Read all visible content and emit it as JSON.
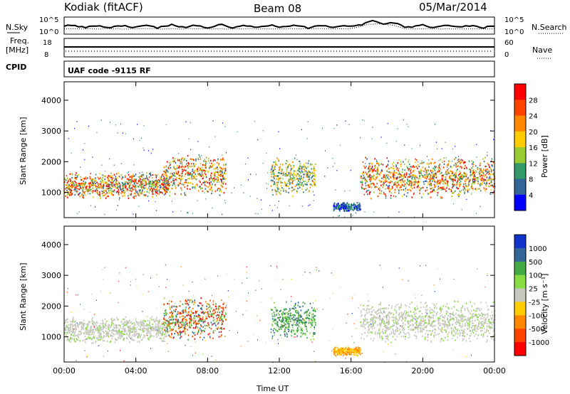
{
  "header": {
    "station": "Kodiak (fitACF)",
    "beam": "Beam 08",
    "date": "05/Mar/2014"
  },
  "top_panels": {
    "nsky_label": "N.Sky",
    "nsearch_label": "N.Search",
    "noise_tick_top": "10^5",
    "noise_tick_bottom": "10^0",
    "freq_label_1": "Freq.",
    "freq_label_2": "[MHz]",
    "freq_tick_top": "18",
    "freq_tick_bottom": "8",
    "nave_label": "Nave",
    "nave_tick_top": "60",
    "nave_tick_bottom": "0",
    "cpid_label": "CPID",
    "cpid_text": "UAF code -9115 RF"
  },
  "power_colorbar": {
    "label": "Power [dB]",
    "ticks": [
      "28",
      "24",
      "20",
      "16",
      "12",
      "8",
      "4"
    ],
    "colors": [
      "#ff0000",
      "#ff4400",
      "#ff8800",
      "#ffcc00",
      "#99cc33",
      "#339966",
      "#336699",
      "#0000ff"
    ]
  },
  "velocity_colorbar": {
    "label": "Velocity [m s⁻¹]",
    "ticks": [
      "1000",
      "500",
      "100",
      "25",
      "-25",
      "-100",
      "-500",
      "-1000"
    ],
    "colors": [
      "#1133cc",
      "#336699",
      "#44aa44",
      "#88dd44",
      "#c8c8c0",
      "#ffcc00",
      "#ff8800",
      "#ff4400",
      "#ff0000"
    ]
  },
  "chart_data": [
    {
      "type": "heatmap",
      "title": "Power",
      "xlabel": "Time UT",
      "ylabel": "Slant Range [km]",
      "x_tick_labels": [
        "00:00",
        "04:00",
        "08:00",
        "12:00",
        "16:00",
        "20:00",
        "00:00"
      ],
      "x_range_hours": [
        0,
        24
      ],
      "y_tick_labels": [
        "1000",
        "2000",
        "3000",
        "4000"
      ],
      "ylim": [
        180,
        4600
      ],
      "colorbar_range_db": [
        0,
        32
      ],
      "echo_regions": [
        {
          "t0": 0.0,
          "t1": 5.8,
          "r0": 800,
          "r1": 1700,
          "level": "high"
        },
        {
          "t0": 5.5,
          "t1": 9.0,
          "r0": 900,
          "r1": 2300,
          "level": "high"
        },
        {
          "t0": 11.5,
          "t1": 14.0,
          "r0": 900,
          "r1": 2200,
          "level": "medium"
        },
        {
          "t0": 15.0,
          "t1": 16.5,
          "r0": 400,
          "r1": 700,
          "level": "low"
        },
        {
          "t0": 16.5,
          "t1": 24.0,
          "r0": 800,
          "r1": 2200,
          "level": "high"
        }
      ]
    },
    {
      "type": "heatmap",
      "title": "Velocity",
      "xlabel": "Time UT",
      "ylabel": "Slant Range [km]",
      "x_tick_labels": [
        "00:00",
        "04:00",
        "08:00",
        "12:00",
        "16:00",
        "20:00",
        "00:00"
      ],
      "x_range_hours": [
        0,
        24
      ],
      "y_tick_labels": [
        "1000",
        "2000",
        "3000",
        "4000"
      ],
      "ylim": [
        180,
        4600
      ],
      "colorbar_range_ms": [
        -1000,
        1000
      ],
      "echo_regions": [
        {
          "t0": 0.0,
          "t1": 5.8,
          "r0": 800,
          "r1": 1700,
          "level": "ground"
        },
        {
          "t0": 5.5,
          "t1": 9.0,
          "r0": 900,
          "r1": 2300,
          "level": "mixed"
        },
        {
          "t0": 11.5,
          "t1": 14.0,
          "r0": 900,
          "r1": 2200,
          "level": "positive"
        },
        {
          "t0": 15.0,
          "t1": 16.5,
          "r0": 400,
          "r1": 700,
          "level": "negative"
        },
        {
          "t0": 16.5,
          "t1": 24.0,
          "r0": 800,
          "r1": 2200,
          "level": "ground"
        }
      ]
    }
  ]
}
